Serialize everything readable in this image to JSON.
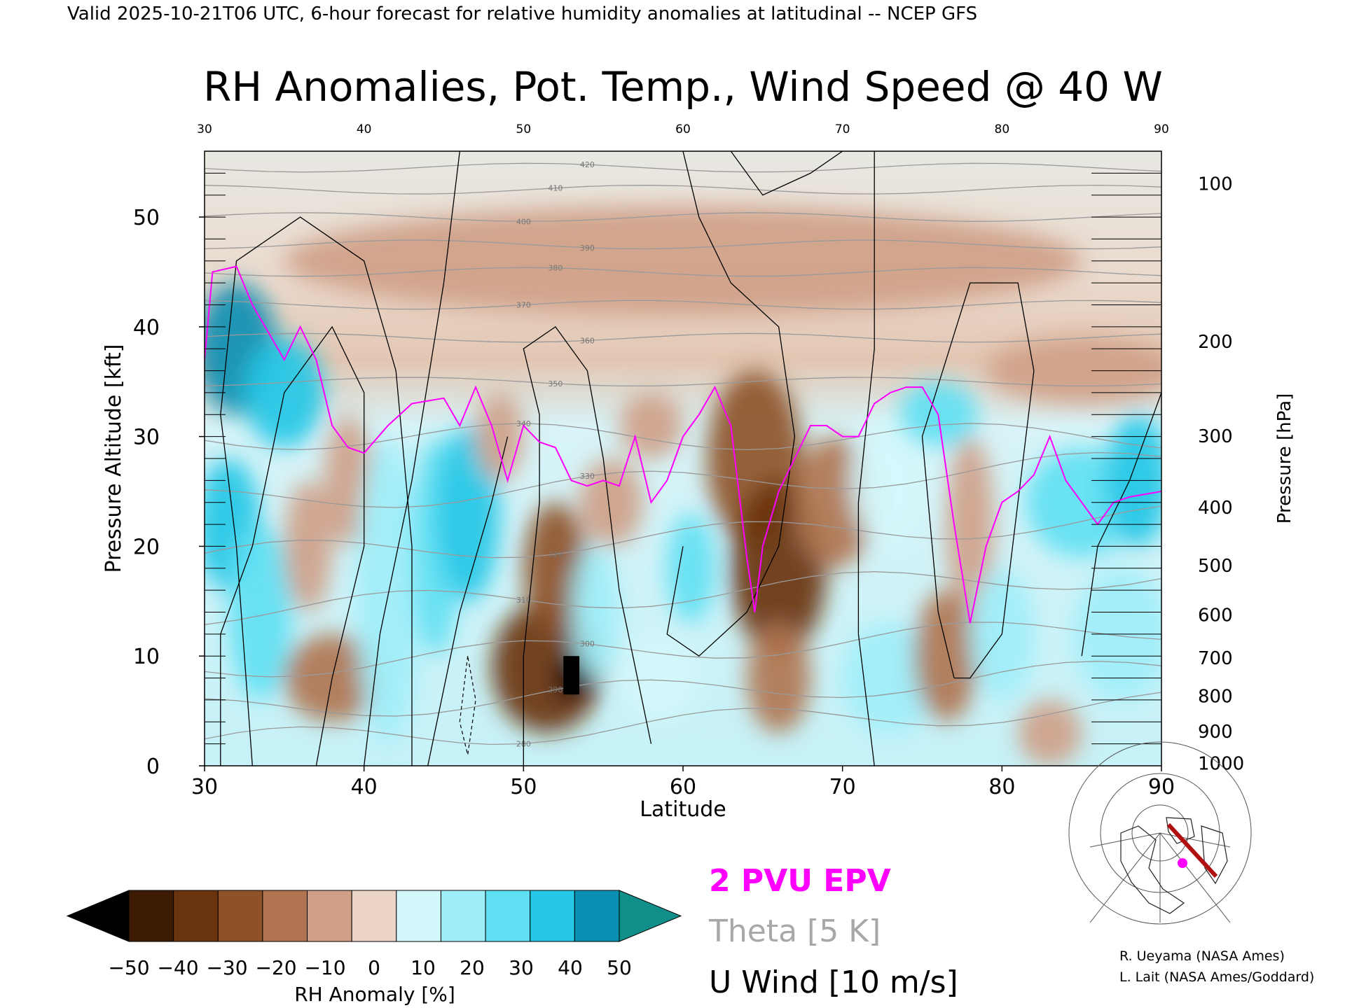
{
  "header": {
    "valid_line": "Valid 2025-10-21T06 UTC, 6-hour forecast for relative humidity anomalies at latitudinal -- NCEP GFS",
    "title": "RH Anomalies, Pot. Temp., Wind Speed @ 40 W"
  },
  "colors": {
    "brown_dark": "#000000",
    "brown_mid": "#7a3d12",
    "brown_light": "#e6c4b0",
    "neutral": "#e8e8e2",
    "cyan_light": "#bff4fb",
    "cyan_mid": "#2cd3ee",
    "cyan_dark": "#0a7fa0",
    "epv_line": "#ff00ff",
    "theta_line": "#9a9a9a",
    "wind_line": "#000000"
  },
  "legend": {
    "epv": "2 PVU EPV",
    "theta": "Theta [5 K]",
    "wind": "U Wind [10 m/s]"
  },
  "colorbar": {
    "label": "RH Anomaly [%]",
    "ticks": [
      "−50",
      "−40",
      "−30",
      "−20",
      "−10",
      "0",
      "10",
      "20",
      "30",
      "40",
      "50"
    ],
    "colors": [
      "#3d1b05",
      "#6a340f",
      "#8e5226",
      "#b07550",
      "#cfa087",
      "#ebd4c6",
      "#d4f7fb",
      "#9eeef8",
      "#5fdff2",
      "#25c7e6",
      "#0a8fb3"
    ],
    "under_color": "#000000",
    "over_color": "#108f8a"
  },
  "credits": {
    "line1": "R. Ueyama (NASA Ames)",
    "line2": "L. Lait (NASA Ames/Goddard)"
  },
  "chart_data": {
    "type": "heatmap",
    "title": "RH Anomalies, Pot. Temp., Wind Speed @ 40 W",
    "xlabel": "Latitude",
    "ylabel": "Pressure Altitude [kft]",
    "y2label": "Pressure [hPa]",
    "xlim": [
      30,
      90
    ],
    "ylim": [
      0,
      56
    ],
    "x_ticks": [
      "30",
      "40",
      "50",
      "60",
      "70",
      "80",
      "90"
    ],
    "y_ticks": [
      "0",
      "10",
      "20",
      "30",
      "40",
      "50"
    ],
    "pressure_ticks": [
      "100",
      "200",
      "300",
      "400",
      "500",
      "600",
      "700",
      "800",
      "900",
      "1000"
    ],
    "pressure_tick_kft": [
      53.1,
      38.7,
      30.1,
      23.6,
      18.3,
      13.8,
      9.9,
      6.4,
      3.2,
      0.3
    ],
    "rh_anomaly_blobs": [
      {
        "x": 32,
        "y": 38,
        "rx": 2.5,
        "ry": 6,
        "v": 45
      },
      {
        "x": 35,
        "y": 34,
        "rx": 2.5,
        "ry": 5,
        "v": 40
      },
      {
        "x": 31.5,
        "y": 22,
        "rx": 2,
        "ry": 6,
        "v": 35
      },
      {
        "x": 33.5,
        "y": 14,
        "rx": 2,
        "ry": 8,
        "v": 25
      },
      {
        "x": 36.5,
        "y": 20,
        "rx": 1.5,
        "ry": 6,
        "v": -15
      },
      {
        "x": 38,
        "y": 8,
        "rx": 3,
        "ry": 4,
        "v": -20
      },
      {
        "x": 39,
        "y": 26,
        "rx": 1.5,
        "ry": 6,
        "v": -10
      },
      {
        "x": 41.5,
        "y": 16,
        "rx": 2,
        "ry": 14,
        "v": 22
      },
      {
        "x": 44.5,
        "y": 20,
        "rx": 1.5,
        "ry": 10,
        "v": 25
      },
      {
        "x": 46.5,
        "y": 23,
        "rx": 2,
        "ry": 8,
        "v": 38
      },
      {
        "x": 48.5,
        "y": 30,
        "rx": 1.5,
        "ry": 4,
        "v": -15
      },
      {
        "x": 51.5,
        "y": 9,
        "rx": 3.5,
        "ry": 6,
        "v": -45
      },
      {
        "x": 52,
        "y": 18,
        "rx": 2,
        "ry": 6,
        "v": -30
      },
      {
        "x": 53,
        "y": 8,
        "rx": 1,
        "ry": 2,
        "v": -55
      },
      {
        "x": 55.5,
        "y": 24,
        "rx": 2,
        "ry": 4,
        "v": -15
      },
      {
        "x": 58,
        "y": 31,
        "rx": 2,
        "ry": 3,
        "v": -15
      },
      {
        "x": 54.5,
        "y": 14,
        "rx": 1.5,
        "ry": 6,
        "v": 22
      },
      {
        "x": 58.5,
        "y": 8,
        "rx": 2.5,
        "ry": 4,
        "v": 10
      },
      {
        "x": 60.5,
        "y": 18,
        "rx": 1.5,
        "ry": 5,
        "v": 25
      },
      {
        "x": 64.5,
        "y": 28,
        "rx": 3,
        "ry": 8,
        "v": -35
      },
      {
        "x": 66,
        "y": 18,
        "rx": 3,
        "ry": 8,
        "v": -40
      },
      {
        "x": 66,
        "y": 8,
        "rx": 2,
        "ry": 5,
        "v": -25
      },
      {
        "x": 69.5,
        "y": 24,
        "rx": 2.5,
        "ry": 6,
        "v": -25
      },
      {
        "x": 73,
        "y": 26,
        "rx": 2.5,
        "ry": 6,
        "v": 12
      },
      {
        "x": 76,
        "y": 32,
        "rx": 2.5,
        "ry": 3,
        "v": 25
      },
      {
        "x": 73,
        "y": 8,
        "rx": 3,
        "ry": 5,
        "v": 22
      },
      {
        "x": 78,
        "y": 22,
        "rx": 1.5,
        "ry": 8,
        "v": -15
      },
      {
        "x": 76.5,
        "y": 10,
        "rx": 2,
        "ry": 6,
        "v": -20
      },
      {
        "x": 80,
        "y": 12,
        "rx": 2,
        "ry": 6,
        "v": 15
      },
      {
        "x": 85,
        "y": 24,
        "rx": 3.5,
        "ry": 5,
        "v": 30
      },
      {
        "x": 88.5,
        "y": 26,
        "rx": 2,
        "ry": 6,
        "v": 35
      },
      {
        "x": 87.5,
        "y": 12,
        "rx": 3,
        "ry": 6,
        "v": 18
      },
      {
        "x": 83,
        "y": 3,
        "rx": 2,
        "ry": 3,
        "v": -10
      },
      {
        "x": 60,
        "y": 46,
        "rx": 25,
        "ry": 5,
        "v": -10
      },
      {
        "x": 85,
        "y": 36,
        "rx": 6,
        "ry": 3,
        "v": -10
      }
    ],
    "theta_levels": [
      280,
      290,
      300,
      310,
      320,
      330,
      340,
      350,
      360,
      370,
      380,
      390,
      400,
      410,
      420
    ],
    "epv_2pvu": [
      [
        30,
        37
      ],
      [
        30.5,
        45
      ],
      [
        32,
        45.5
      ],
      [
        33,
        42
      ],
      [
        34,
        39.5
      ],
      [
        35,
        37
      ],
      [
        36,
        40
      ],
      [
        37,
        37
      ],
      [
        38,
        31
      ],
      [
        39,
        29
      ],
      [
        40,
        28.5
      ],
      [
        41.5,
        31
      ],
      [
        43,
        33
      ],
      [
        45,
        33.5
      ],
      [
        46,
        31
      ],
      [
        47,
        34.5
      ],
      [
        48,
        31
      ],
      [
        49,
        26
      ],
      [
        50,
        31
      ],
      [
        51,
        29.5
      ],
      [
        52,
        29
      ],
      [
        53,
        26
      ],
      [
        54,
        25.5
      ],
      [
        55,
        26
      ],
      [
        56,
        25.5
      ],
      [
        57,
        30
      ],
      [
        58,
        24
      ],
      [
        59,
        26
      ],
      [
        60,
        30
      ],
      [
        61,
        32
      ],
      [
        62,
        34.5
      ],
      [
        63,
        31
      ],
      [
        64,
        19
      ],
      [
        64.5,
        14
      ],
      [
        65,
        20
      ],
      [
        66,
        25
      ],
      [
        67,
        28
      ],
      [
        68,
        31
      ],
      [
        69,
        31
      ],
      [
        70,
        30
      ],
      [
        71,
        30
      ],
      [
        72,
        33
      ],
      [
        73,
        34
      ],
      [
        74,
        34.5
      ],
      [
        75,
        34.5
      ],
      [
        76,
        32
      ],
      [
        77,
        22
      ],
      [
        78,
        13
      ],
      [
        79,
        20
      ],
      [
        80,
        24
      ],
      [
        81,
        25
      ],
      [
        82,
        26.5
      ],
      [
        83,
        30
      ],
      [
        84,
        26
      ],
      [
        85,
        24
      ],
      [
        86,
        22
      ],
      [
        87,
        24
      ],
      [
        88,
        24.5
      ],
      [
        90,
        25
      ]
    ],
    "u_wind_levels": [
      0,
      10,
      20,
      30,
      -10
    ]
  }
}
